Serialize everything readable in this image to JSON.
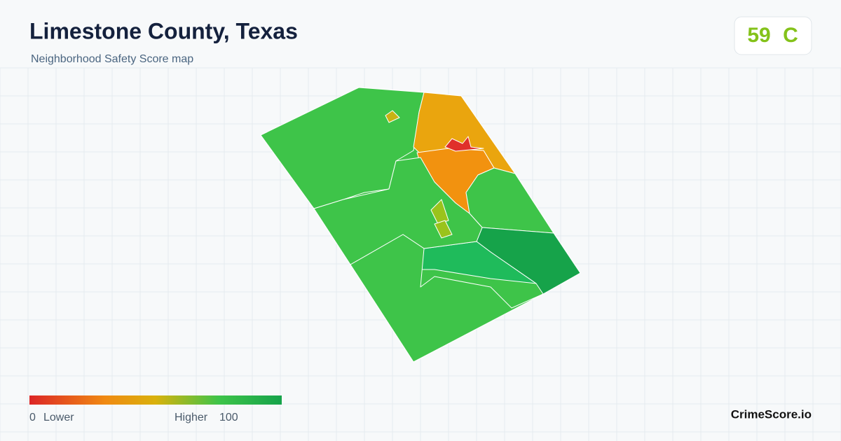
{
  "header": {
    "title": "Limestone County, Texas",
    "subtitle": "Neighborhood Safety Score map"
  },
  "score": {
    "value": 59,
    "grade": "C"
  },
  "legend": {
    "min": 0,
    "min_label": "Lower",
    "max_label": "Higher",
    "max": 100
  },
  "brand": "CrimeScore.io"
}
